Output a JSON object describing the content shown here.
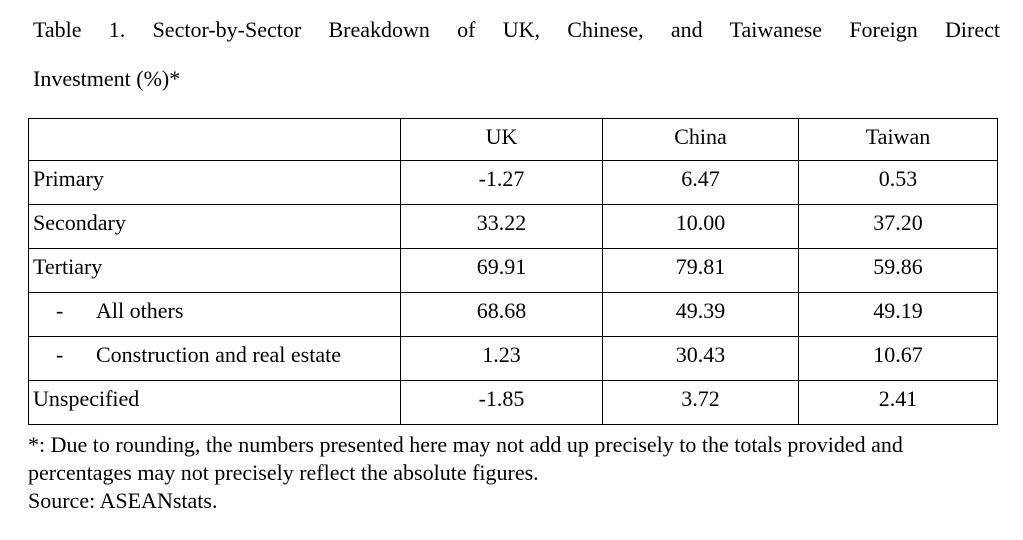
{
  "title": {
    "line1": "Table 1. Sector-by-Sector Breakdown of UK, Chinese, and Taiwanese Foreign Direct",
    "line2": "Investment (%)*"
  },
  "table": {
    "columns": [
      "",
      "UK",
      "China",
      "Taiwan"
    ],
    "indent_marker": "-",
    "rows": [
      {
        "label": "Primary",
        "indent": false,
        "values": [
          "-1.27",
          "6.47",
          "0.53"
        ]
      },
      {
        "label": "Secondary",
        "indent": false,
        "values": [
          "33.22",
          "10.00",
          "37.20"
        ]
      },
      {
        "label": "Tertiary",
        "indent": false,
        "values": [
          "69.91",
          "79.81",
          "59.86"
        ]
      },
      {
        "label": "All others",
        "indent": true,
        "values": [
          "68.68",
          "49.39",
          "49.19"
        ]
      },
      {
        "label": "Construction and real estate",
        "indent": true,
        "values": [
          "1.23",
          "30.43",
          "10.67"
        ]
      },
      {
        "label": "Unspecified",
        "indent": false,
        "values": [
          "-1.85",
          "3.72",
          "2.41"
        ]
      }
    ]
  },
  "footnotes": {
    "asterisk_note": "*: Due to rounding, the numbers presented here may not add up precisely to the totals provided and percentages may not precisely reflect the absolute figures.",
    "source": "Source: ASEANstats."
  }
}
